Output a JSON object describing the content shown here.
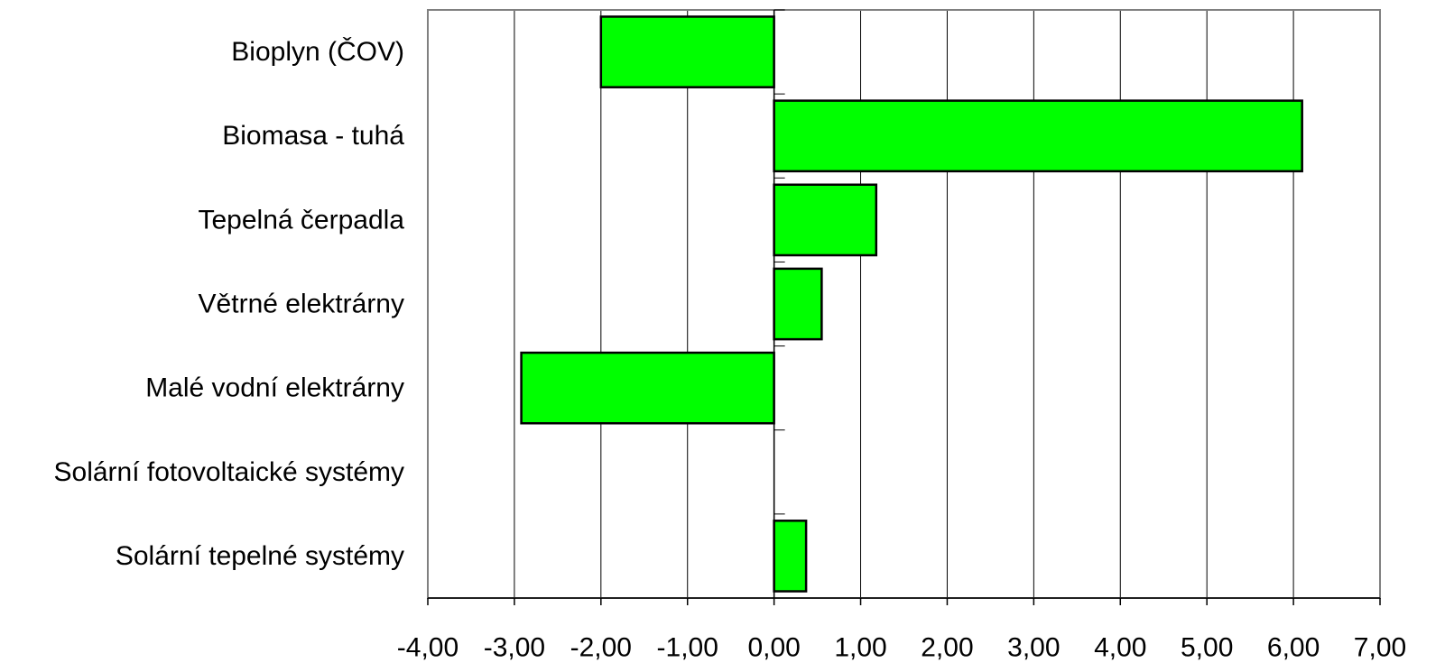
{
  "chart_data": {
    "type": "bar",
    "orientation": "horizontal",
    "categories": [
      "Bioplyn (ČOV)",
      "Biomasa - tuhá",
      "Tepelná čerpadla",
      "Větrné elektrárny",
      "Malé vodní elektrárny",
      "Solární fotovoltaické systémy",
      "Solární tepelné systémy"
    ],
    "values": [
      -2.0,
      6.1,
      1.18,
      0.55,
      -2.92,
      0.0,
      0.37
    ],
    "xlim": [
      -4,
      7
    ],
    "xticks": [
      "-4,00",
      "-3,00",
      "-2,00",
      "-1,00",
      "0,00",
      "1,00",
      "2,00",
      "3,00",
      "4,00",
      "5,00",
      "6,00",
      "7,00"
    ],
    "grid": "vertical",
    "legend": "none",
    "colors": {
      "bar": "#00ff00",
      "bar_stroke": "#000000",
      "grid": "#000000",
      "frame": "#808080"
    }
  }
}
